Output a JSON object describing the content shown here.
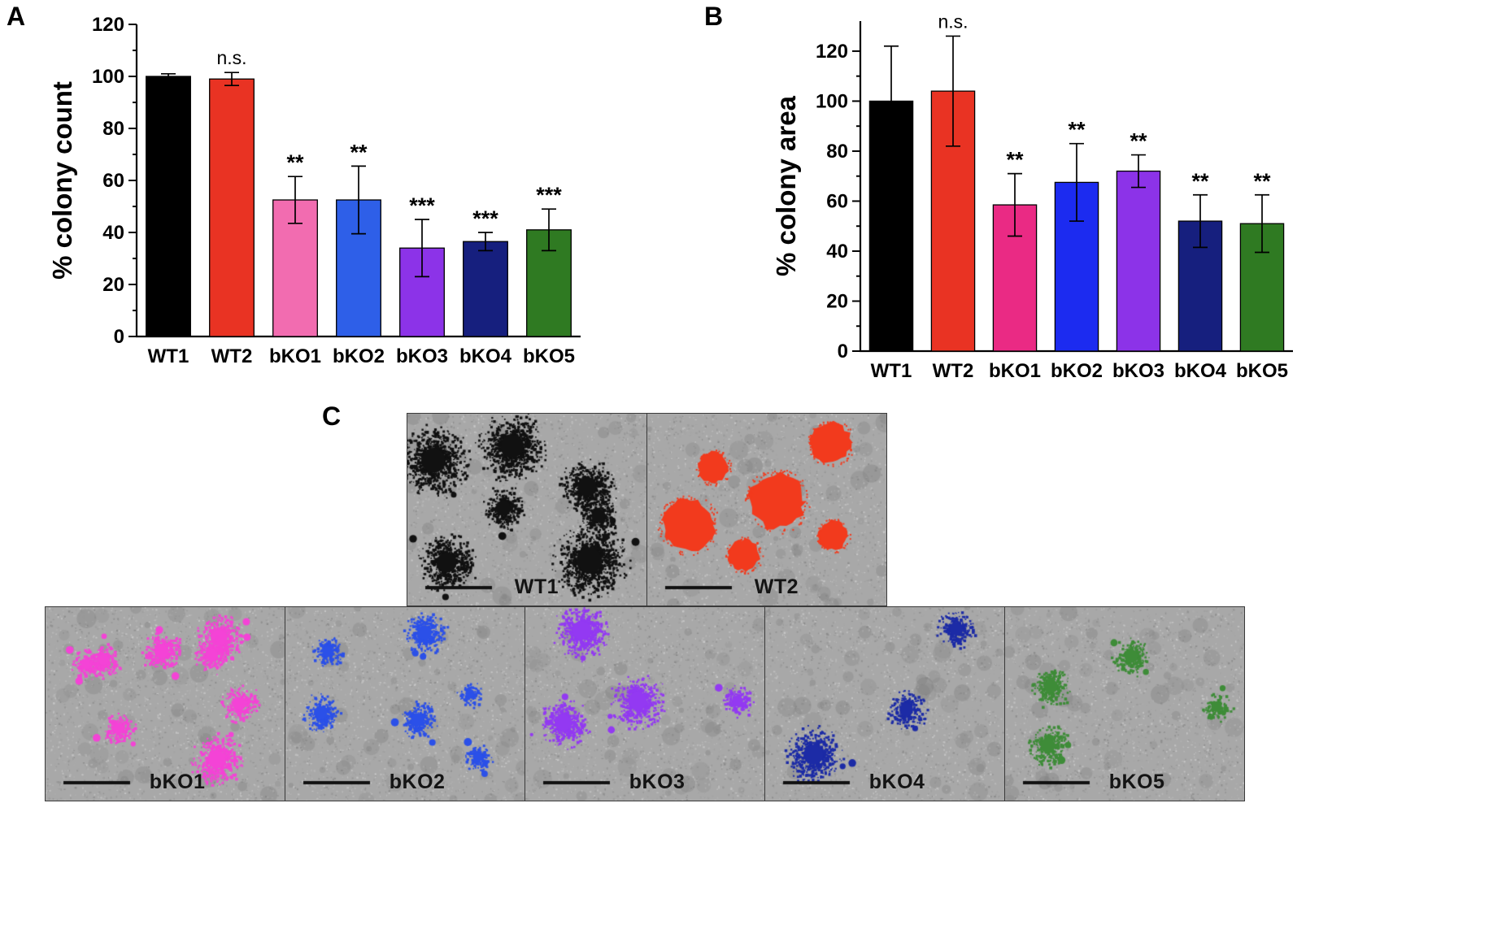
{
  "labels": {
    "panel_a": "A",
    "panel_b": "B",
    "panel_c": "C"
  },
  "chart_data": [
    {
      "type": "bar",
      "name": "colony-count-chart",
      "title": "",
      "xlabel": "",
      "ylabel": "% colony count",
      "categories": [
        "WT1",
        "WT2",
        "bKO1",
        "bKO2",
        "bKO3",
        "bKO4",
        "bKO5"
      ],
      "values": [
        100,
        99,
        52.5,
        52.5,
        34,
        36.5,
        41
      ],
      "errors": [
        1,
        2.5,
        9,
        13,
        11,
        3.5,
        8
      ],
      "annotations": [
        "",
        "n.s.",
        "**",
        "**",
        "***",
        "***",
        "***"
      ],
      "colors": [
        "#000000",
        "#e93323",
        "#f26cb0",
        "#2e5fe8",
        "#8c33e8",
        "#161f7e",
        "#2f7a22"
      ],
      "ylim": [
        0,
        120
      ],
      "ytick_step": 20,
      "ytick_max": 120,
      "grid": false,
      "legend": "none"
    },
    {
      "type": "bar",
      "name": "colony-area-chart",
      "title": "",
      "xlabel": "",
      "ylabel": "% colony area",
      "categories": [
        "WT1",
        "WT2",
        "bKO1",
        "bKO2",
        "bKO3",
        "bKO4",
        "bKO5"
      ],
      "values": [
        100,
        104,
        58.5,
        67.5,
        72,
        52,
        51
      ],
      "errors": [
        22,
        22,
        12.5,
        15.5,
        6.5,
        10.5,
        11.5
      ],
      "annotations": [
        "",
        "n.s.",
        "**",
        "**",
        "**",
        "**",
        "**"
      ],
      "colors": [
        "#000000",
        "#e93323",
        "#ea2a84",
        "#1c2bf0",
        "#8c33e8",
        "#161f7e",
        "#2f7a22"
      ],
      "ylim": [
        0,
        132
      ],
      "ytick_step": 20,
      "ytick_max": 120,
      "grid": false,
      "legend": "none"
    }
  ],
  "micrographs": {
    "cells": [
      {
        "label": "WT1",
        "row": "top",
        "color": "#111111",
        "style": "dense",
        "colonies": 7,
        "rmin": 20,
        "rmax": 42
      },
      {
        "label": "WT2",
        "row": "top",
        "color": "#f23a1d",
        "style": "solid",
        "colonies": 6,
        "rmin": 18,
        "rmax": 36
      },
      {
        "label": "bKO1",
        "row": "bottom",
        "color": "#f443d6",
        "style": "dense",
        "colonies": 8,
        "rmin": 14,
        "rmax": 28
      },
      {
        "label": "bKO2",
        "row": "bottom",
        "color": "#2b50e8",
        "style": "dense",
        "colonies": 6,
        "rmin": 12,
        "rmax": 22
      },
      {
        "label": "bKO3",
        "row": "bottom",
        "color": "#9339f2",
        "style": "dense",
        "colonies": 4,
        "rmin": 16,
        "rmax": 30
      },
      {
        "label": "bKO4",
        "row": "bottom",
        "color": "#1c2ba6",
        "style": "dense",
        "colonies": 3,
        "rmin": 18,
        "rmax": 32
      },
      {
        "label": "bKO5",
        "row": "bottom",
        "color": "#3e8c38",
        "style": "dense",
        "colonies": 4,
        "rmin": 14,
        "rmax": 28
      }
    ]
  }
}
